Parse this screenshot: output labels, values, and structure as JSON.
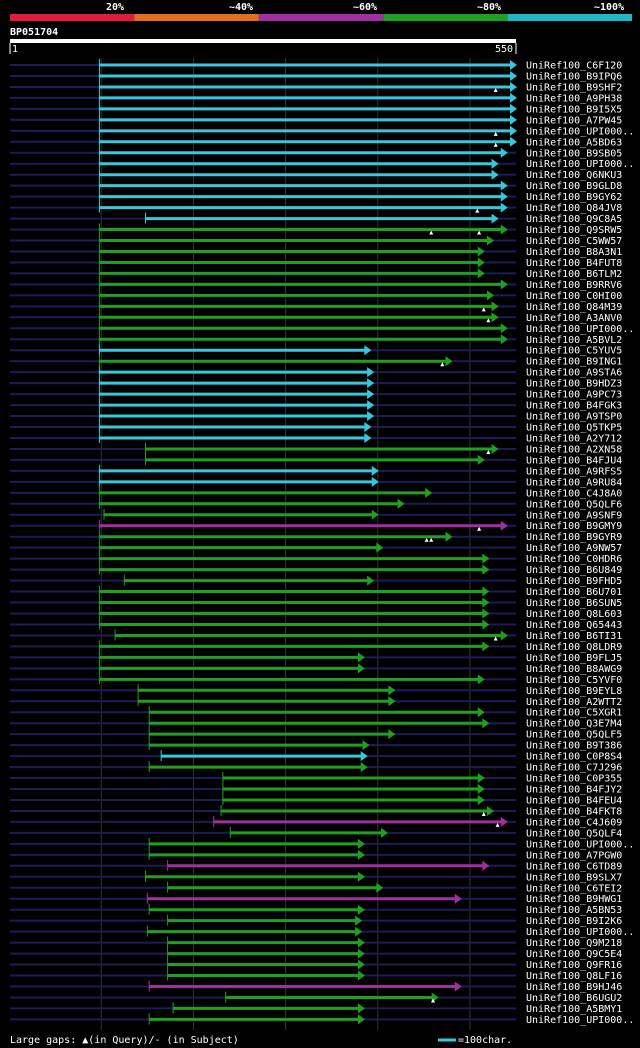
{
  "title": "BP051704",
  "identity_scale": {
    "labels": [
      "20%",
      "~40%",
      "~60%",
      "~80%",
      "~100%"
    ],
    "colors": [
      "#e01b3c",
      "#e07020",
      "#a030a0",
      "#20a020",
      "#20b8c8"
    ]
  },
  "query": {
    "start_label": "1",
    "end_label": "550",
    "length": 550
  },
  "footer": {
    "gaps_label": "Large gaps: ",
    "in_query": "(in Query)/",
    "in_subject": "- (in Subject)",
    "scale_legend": "=100char."
  },
  "colors": {
    "cyan": "#38c8dc",
    "green": "#20a020",
    "purple": "#a030a0",
    "blue": "#1c1c5a",
    "grid": "#333333",
    "bg": "#000000"
  },
  "chart_data": {
    "type": "alignment",
    "x_units": "query residues",
    "hits": [
      {
        "name": "UniRef100_C6F120",
        "start": 98,
        "end": 550,
        "color": "cyan",
        "gaps": []
      },
      {
        "name": "UniRef100_B9IPQ6",
        "start": 98,
        "end": 550,
        "color": "cyan",
        "gaps": []
      },
      {
        "name": "UniRef100_B9SHF2",
        "start": 98,
        "end": 550,
        "color": "cyan",
        "gaps": [
          528
        ]
      },
      {
        "name": "UniRef100_A9PH38",
        "start": 98,
        "end": 550,
        "color": "cyan",
        "gaps": []
      },
      {
        "name": "UniRef100_B9I5X5",
        "start": 98,
        "end": 550,
        "color": "cyan",
        "gaps": []
      },
      {
        "name": "UniRef100_A7PW45",
        "start": 98,
        "end": 550,
        "color": "cyan",
        "gaps": []
      },
      {
        "name": "UniRef100_UPI000..",
        "start": 98,
        "end": 550,
        "color": "cyan",
        "gaps": [
          528
        ]
      },
      {
        "name": "UniRef100_A5BD63",
        "start": 98,
        "end": 550,
        "color": "cyan",
        "gaps": [
          528
        ]
      },
      {
        "name": "UniRef100_B9SB05",
        "start": 98,
        "end": 540,
        "color": "cyan",
        "gaps": []
      },
      {
        "name": "UniRef100_UPI000..",
        "start": 98,
        "end": 530,
        "color": "cyan",
        "gaps": []
      },
      {
        "name": "UniRef100_Q6NKU3",
        "start": 98,
        "end": 530,
        "color": "cyan",
        "gaps": []
      },
      {
        "name": "UniRef100_B9GLD8",
        "start": 98,
        "end": 540,
        "color": "cyan",
        "gaps": []
      },
      {
        "name": "UniRef100_B9GY62",
        "start": 98,
        "end": 540,
        "color": "cyan",
        "gaps": []
      },
      {
        "name": "UniRef100_Q84JV8",
        "start": 98,
        "end": 540,
        "color": "cyan",
        "gaps": [
          508
        ]
      },
      {
        "name": "UniRef100_Q9C8A5",
        "start": 148,
        "end": 530,
        "color": "cyan",
        "gaps": []
      },
      {
        "name": "UniRef100_Q9SRW5",
        "start": 98,
        "end": 540,
        "color": "green",
        "gaps": [
          458,
          510
        ]
      },
      {
        "name": "UniRef100_C5WW57",
        "start": 98,
        "end": 525,
        "color": "green",
        "gaps": []
      },
      {
        "name": "UniRef100_B8A3N1",
        "start": 98,
        "end": 515,
        "color": "green",
        "gaps": []
      },
      {
        "name": "UniRef100_B4FUT8",
        "start": 98,
        "end": 515,
        "color": "green",
        "gaps": []
      },
      {
        "name": "UniRef100_B6TLM2",
        "start": 98,
        "end": 515,
        "color": "green",
        "gaps": []
      },
      {
        "name": "UniRef100_B9RRV6",
        "start": 98,
        "end": 540,
        "color": "green",
        "gaps": []
      },
      {
        "name": "UniRef100_C0HI00",
        "start": 98,
        "end": 525,
        "color": "green",
        "gaps": []
      },
      {
        "name": "UniRef100_Q84M39",
        "start": 98,
        "end": 530,
        "color": "green",
        "gaps": [
          515
        ]
      },
      {
        "name": "UniRef100_A3ANV0",
        "start": 98,
        "end": 530,
        "color": "green",
        "gaps": [
          520
        ]
      },
      {
        "name": "UniRef100_UPI000..",
        "start": 98,
        "end": 540,
        "color": "green",
        "gaps": []
      },
      {
        "name": "UniRef100_A5BVL2",
        "start": 98,
        "end": 540,
        "color": "green",
        "gaps": []
      },
      {
        "name": "UniRef100_C5YUV5",
        "start": 98,
        "end": 392,
        "color": "cyan",
        "gaps": []
      },
      {
        "name": "UniRef100_B9ING1",
        "start": 98,
        "end": 480,
        "color": "green",
        "gaps": [
          470
        ]
      },
      {
        "name": "UniRef100_A9STA6",
        "start": 98,
        "end": 395,
        "color": "cyan",
        "gaps": []
      },
      {
        "name": "UniRef100_B9HDZ3",
        "start": 98,
        "end": 395,
        "color": "cyan",
        "gaps": []
      },
      {
        "name": "UniRef100_A9PC73",
        "start": 98,
        "end": 395,
        "color": "cyan",
        "gaps": []
      },
      {
        "name": "UniRef100_B4FGK3",
        "start": 98,
        "end": 395,
        "color": "cyan",
        "gaps": []
      },
      {
        "name": "UniRef100_A9TSP0",
        "start": 98,
        "end": 395,
        "color": "cyan",
        "gaps": []
      },
      {
        "name": "UniRef100_Q5TKP5",
        "start": 98,
        "end": 392,
        "color": "cyan",
        "gaps": []
      },
      {
        "name": "UniRef100_A2Y712",
        "start": 98,
        "end": 392,
        "color": "cyan",
        "gaps": []
      },
      {
        "name": "UniRef100_A2XN58",
        "start": 148,
        "end": 530,
        "color": "green",
        "gaps": [
          520
        ]
      },
      {
        "name": "UniRef100_B4FJU4",
        "start": 148,
        "end": 515,
        "color": "green",
        "gaps": []
      },
      {
        "name": "UniRef100_A9RFS5",
        "start": 98,
        "end": 400,
        "color": "cyan",
        "gaps": []
      },
      {
        "name": "UniRef100_A9RU84",
        "start": 98,
        "end": 400,
        "color": "cyan",
        "gaps": []
      },
      {
        "name": "UniRef100_C4J8A0",
        "start": 98,
        "end": 458,
        "color": "green",
        "gaps": []
      },
      {
        "name": "UniRef100_Q5QLF6",
        "start": 98,
        "end": 428,
        "color": "green",
        "gaps": []
      },
      {
        "name": "UniRef100_A9SNF9",
        "start": 103,
        "end": 400,
        "color": "green",
        "gaps": []
      },
      {
        "name": "UniRef100_B9GMY9",
        "start": 98,
        "end": 540,
        "color": "purple",
        "gaps": [
          510
        ]
      },
      {
        "name": "UniRef100_B9GYR9",
        "start": 98,
        "end": 480,
        "color": "green",
        "gaps": [
          453,
          458
        ]
      },
      {
        "name": "UniRef100_A9NW57",
        "start": 98,
        "end": 405,
        "color": "green",
        "gaps": []
      },
      {
        "name": "UniRef100_C0HDR6",
        "start": 98,
        "end": 520,
        "color": "green",
        "gaps": []
      },
      {
        "name": "UniRef100_B6U849",
        "start": 98,
        "end": 520,
        "color": "green",
        "gaps": []
      },
      {
        "name": "UniRef100_B9FHD5",
        "start": 125,
        "end": 395,
        "color": "green",
        "gaps": []
      },
      {
        "name": "UniRef100_B6U701",
        "start": 98,
        "end": 520,
        "color": "green",
        "gaps": []
      },
      {
        "name": "UniRef100_B6SUN5",
        "start": 98,
        "end": 520,
        "color": "green",
        "gaps": []
      },
      {
        "name": "UniRef100_Q8L603",
        "start": 98,
        "end": 520,
        "color": "green",
        "gaps": []
      },
      {
        "name": "UniRef100_Q65443",
        "start": 98,
        "end": 520,
        "color": "green",
        "gaps": []
      },
      {
        "name": "UniRef100_B6TI31",
        "start": 115,
        "end": 540,
        "color": "green",
        "gaps": [
          528
        ]
      },
      {
        "name": "UniRef100_Q8LDR9",
        "start": 98,
        "end": 520,
        "color": "green",
        "gaps": []
      },
      {
        "name": "UniRef100_B9FLJ5",
        "start": 98,
        "end": 385,
        "color": "green",
        "gaps": []
      },
      {
        "name": "UniRef100_B8AWG9",
        "start": 98,
        "end": 385,
        "color": "green",
        "gaps": []
      },
      {
        "name": "UniRef100_C5YVF0",
        "start": 98,
        "end": 515,
        "color": "green",
        "gaps": []
      },
      {
        "name": "UniRef100_B9EYL8",
        "start": 140,
        "end": 418,
        "color": "green",
        "gaps": []
      },
      {
        "name": "UniRef100_A2WTT2",
        "start": 140,
        "end": 418,
        "color": "green",
        "gaps": []
      },
      {
        "name": "UniRef100_C5XGR1",
        "start": 152,
        "end": 515,
        "color": "green",
        "gaps": []
      },
      {
        "name": "UniRef100_Q3E7M4",
        "start": 152,
        "end": 520,
        "color": "green",
        "gaps": []
      },
      {
        "name": "UniRef100_Q5QLF5",
        "start": 152,
        "end": 418,
        "color": "green",
        "gaps": []
      },
      {
        "name": "UniRef100_B9T386",
        "start": 152,
        "end": 390,
        "color": "green",
        "gaps": []
      },
      {
        "name": "UniRef100_C0P8S4",
        "start": 165,
        "end": 388,
        "color": "cyan",
        "gaps": []
      },
      {
        "name": "UniRef100_C7J296",
        "start": 152,
        "end": 388,
        "color": "green",
        "gaps": []
      },
      {
        "name": "UniRef100_C0P355",
        "start": 232,
        "end": 515,
        "color": "green",
        "gaps": []
      },
      {
        "name": "UniRef100_B4FJY2",
        "start": 232,
        "end": 515,
        "color": "green",
        "gaps": []
      },
      {
        "name": "UniRef100_B4FEU4",
        "start": 232,
        "end": 515,
        "color": "green",
        "gaps": []
      },
      {
        "name": "UniRef100_B4FKT8",
        "start": 230,
        "end": 525,
        "color": "green",
        "gaps": [
          515
        ]
      },
      {
        "name": "UniRef100_C4J609",
        "start": 222,
        "end": 540,
        "color": "purple",
        "gaps": [
          530
        ]
      },
      {
        "name": "UniRef100_Q5QLF4",
        "start": 240,
        "end": 410,
        "color": "green",
        "gaps": []
      },
      {
        "name": "UniRef100_UPI000..",
        "start": 152,
        "end": 385,
        "color": "green",
        "gaps": []
      },
      {
        "name": "UniRef100_A7PGW0",
        "start": 152,
        "end": 385,
        "color": "green",
        "gaps": []
      },
      {
        "name": "UniRef100_C6TD89",
        "start": 172,
        "end": 520,
        "color": "purple",
        "gaps": []
      },
      {
        "name": "UniRef100_B9SLX7",
        "start": 148,
        "end": 385,
        "color": "green",
        "gaps": []
      },
      {
        "name": "UniRef100_C6TEI2",
        "start": 172,
        "end": 405,
        "color": "green",
        "gaps": []
      },
      {
        "name": "UniRef100_B9HWG1",
        "start": 150,
        "end": 490,
        "color": "purple",
        "gaps": []
      },
      {
        "name": "UniRef100_A5BN53",
        "start": 152,
        "end": 385,
        "color": "green",
        "gaps": []
      },
      {
        "name": "UniRef100_B9I2K6",
        "start": 172,
        "end": 382,
        "color": "green",
        "gaps": []
      },
      {
        "name": "UniRef100_UPI000..",
        "start": 150,
        "end": 382,
        "color": "green",
        "gaps": []
      },
      {
        "name": "UniRef100_Q9M218",
        "start": 172,
        "end": 385,
        "color": "green",
        "gaps": []
      },
      {
        "name": "UniRef100_Q9C5E4",
        "start": 172,
        "end": 385,
        "color": "green",
        "gaps": []
      },
      {
        "name": "UniRef100_Q9FR16",
        "start": 172,
        "end": 385,
        "color": "green",
        "gaps": []
      },
      {
        "name": "UniRef100_Q8LF16",
        "start": 172,
        "end": 385,
        "color": "green",
        "gaps": []
      },
      {
        "name": "UniRef100_B9HJ46",
        "start": 152,
        "end": 490,
        "color": "purple",
        "gaps": []
      },
      {
        "name": "UniRef100_B6UGU2",
        "start": 235,
        "end": 465,
        "color": "green",
        "gaps": [
          460
        ]
      },
      {
        "name": "UniRef100_A5BMY1",
        "start": 178,
        "end": 385,
        "color": "green",
        "gaps": []
      },
      {
        "name": "UniRef100_UPI000..",
        "start": 152,
        "end": 385,
        "color": "green",
        "gaps": []
      }
    ]
  }
}
